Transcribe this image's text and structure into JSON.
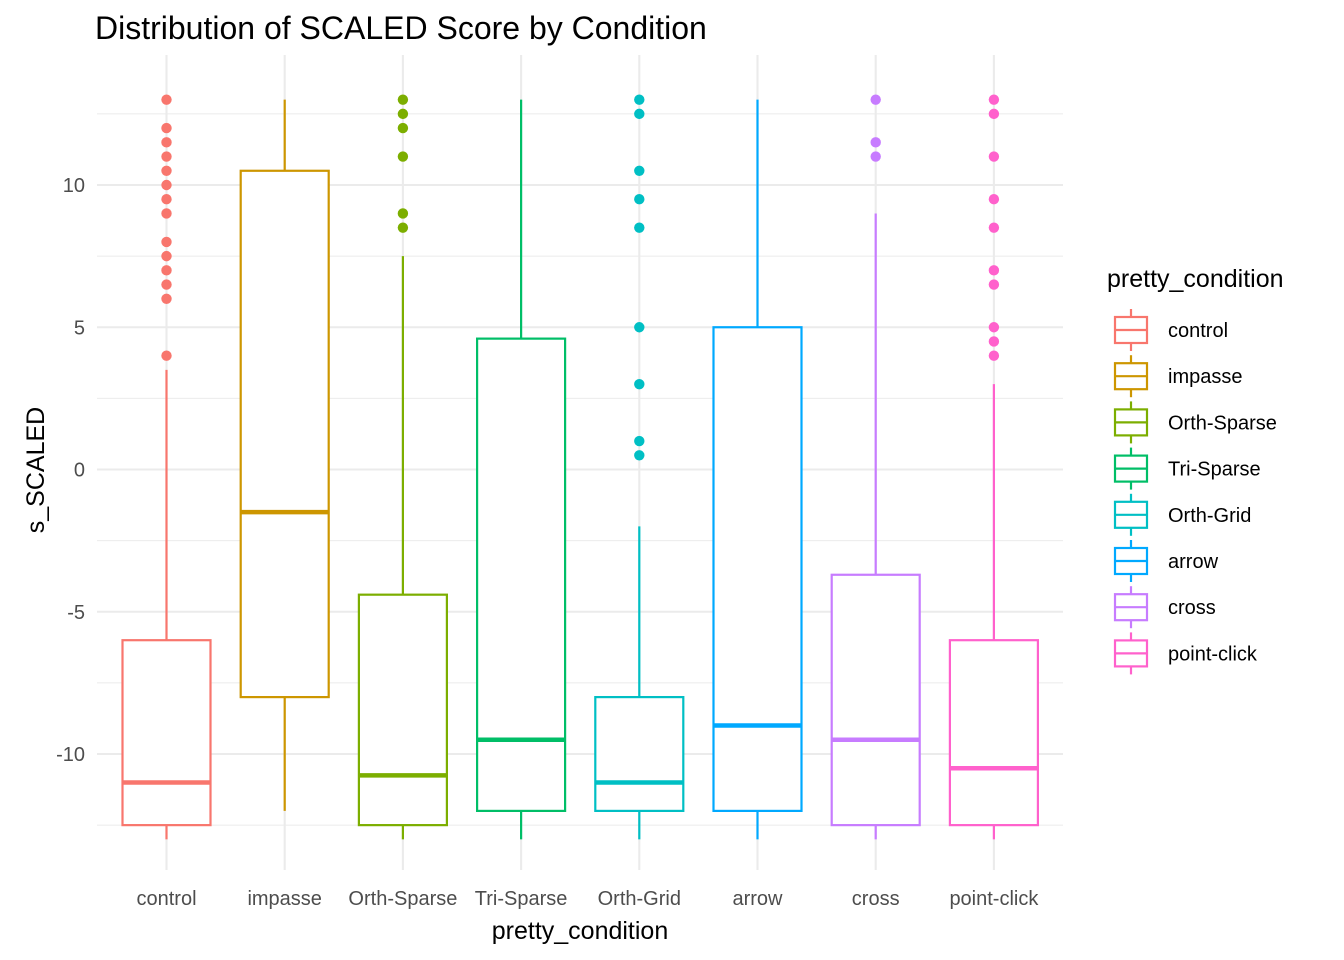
{
  "chart_data": {
    "type": "boxplot",
    "title": "Distribution of SCALED Score by Condition",
    "xlabel": "pretty_condition",
    "ylabel": "s_SCALED",
    "ylim": [
      -14,
      13.5
    ],
    "yticks": [
      -10,
      -5,
      0,
      5,
      10
    ],
    "grid": true,
    "legend": {
      "title": "pretty_condition",
      "position": "right"
    },
    "categories": [
      "control",
      "impasse",
      "Orth-Sparse",
      "Tri-Sparse",
      "Orth-Grid",
      "arrow",
      "cross",
      "point-click"
    ],
    "colors": [
      "#F8766D",
      "#CD9600",
      "#7CAE00",
      "#00BE67",
      "#00BFC4",
      "#00A9FF",
      "#C77CFF",
      "#FF61CC"
    ],
    "boxes": [
      {
        "category": "control",
        "whisker_low": -13,
        "q1": -12.5,
        "median": -11,
        "q3": -6,
        "whisker_high": 3.5,
        "outliers": [
          4,
          6,
          6.5,
          7,
          7.5,
          8,
          9,
          9.5,
          10,
          10.5,
          11,
          11.5,
          12,
          13
        ]
      },
      {
        "category": "impasse",
        "whisker_low": -12,
        "q1": -8,
        "median": -1.5,
        "q3": 10.5,
        "whisker_high": 13,
        "outliers": []
      },
      {
        "category": "Orth-Sparse",
        "whisker_low": -13,
        "q1": -12.5,
        "median": -10.75,
        "q3": -4.4,
        "whisker_high": 7.5,
        "outliers": [
          8.5,
          9,
          11,
          12,
          12.5,
          13
        ]
      },
      {
        "category": "Tri-Sparse",
        "whisker_low": -13,
        "q1": -12,
        "median": -9.5,
        "q3": 4.6,
        "whisker_high": 13,
        "outliers": []
      },
      {
        "category": "Orth-Grid",
        "whisker_low": -13,
        "q1": -12,
        "median": -11,
        "q3": -8,
        "whisker_high": -2,
        "outliers": [
          0.5,
          1,
          3,
          5,
          8.5,
          9.5,
          10.5,
          12.5,
          13
        ]
      },
      {
        "category": "arrow",
        "whisker_low": -13,
        "q1": -12,
        "median": -9,
        "q3": 5,
        "whisker_high": 13,
        "outliers": []
      },
      {
        "category": "cross",
        "whisker_low": -13,
        "q1": -12.5,
        "median": -9.5,
        "q3": -3.7,
        "whisker_high": 9,
        "outliers": [
          11,
          11.5,
          13
        ]
      },
      {
        "category": "point-click",
        "whisker_low": -13,
        "q1": -12.5,
        "median": -10.5,
        "q3": -6,
        "whisker_high": 3,
        "outliers": [
          4,
          4.5,
          5,
          6.5,
          7,
          8.5,
          9.5,
          11,
          12.5,
          13
        ]
      }
    ]
  }
}
